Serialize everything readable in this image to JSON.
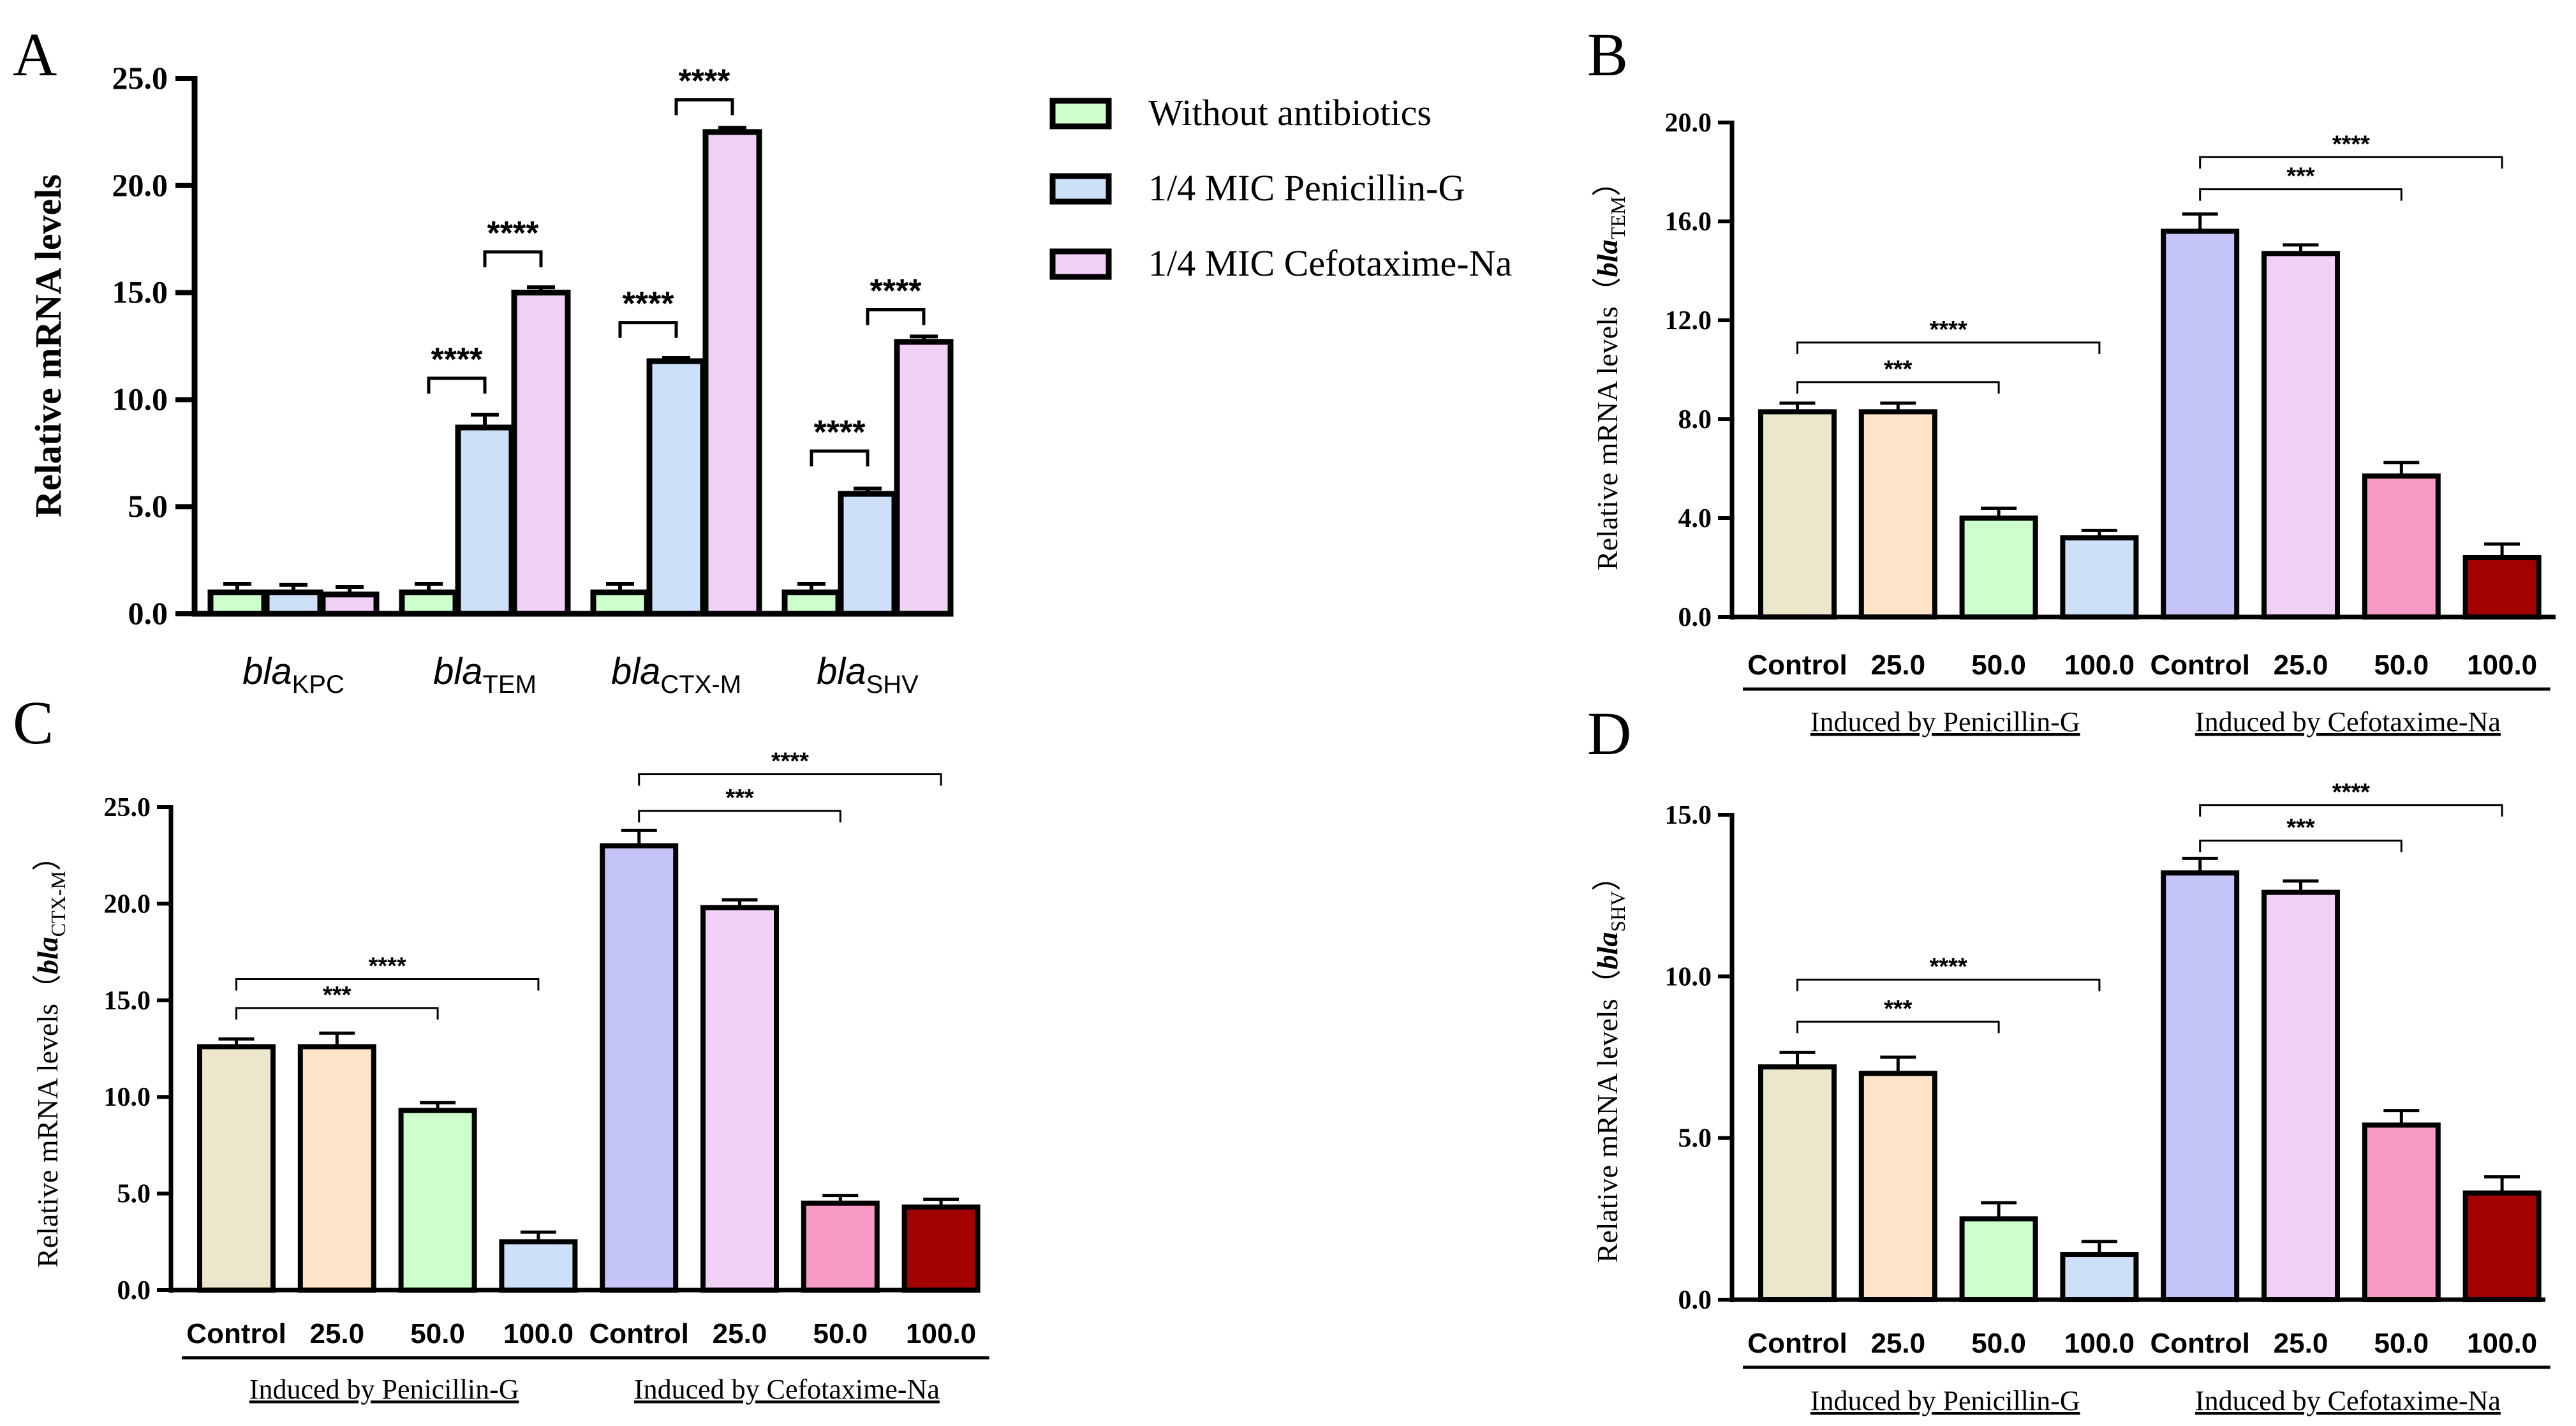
{
  "figure": {
    "panels": [
      {
        "id": "panel-a",
        "label": "A"
      },
      {
        "id": "panel-b",
        "label": "B"
      },
      {
        "id": "panel-c",
        "label": "C"
      },
      {
        "id": "panel-d",
        "label": "D"
      }
    ]
  },
  "colors": {
    "without": "#ccffcc",
    "penicillin": "#cce0f7",
    "cefotaxime": "#f0d0f5",
    "control_pen": "#ebe6cc",
    "c25_pen": "#fde3c8",
    "c50_pen": "#ccffcc",
    "c100_pen": "#cce0f7",
    "control_cef": "#c4c4f8",
    "c25_cef": "#f0d0f5",
    "c50_cef": "#f89bc6",
    "c100_cef": "#a30000"
  },
  "chart_data": [
    {
      "panel": "A",
      "type": "bar",
      "ylabel": "Relative mRNA levels",
      "ylim": [
        0,
        25
      ],
      "yticks": [
        "0.0",
        "5.0",
        "10.0",
        "15.0",
        "20.0",
        "25.0"
      ],
      "categories": [
        {
          "base": "bla",
          "sub": "KPC"
        },
        {
          "base": "bla",
          "sub": "TEM"
        },
        {
          "base": "bla",
          "sub": "CTX-M"
        },
        {
          "base": "bla",
          "sub": "SHV"
        }
      ],
      "series": [
        {
          "name": "Without antibiotics",
          "color": "#ccffcc",
          "values": [
            1.0,
            1.0,
            1.0,
            1.0
          ],
          "errors": [
            0.4,
            0.4,
            0.4,
            0.4
          ]
        },
        {
          "name": "1/4 MIC Penicillin-G",
          "color": "#cce0f7",
          "values": [
            1.0,
            8.7,
            11.8,
            5.6
          ],
          "errors": [
            0.35,
            0.6,
            0.15,
            0.25
          ]
        },
        {
          "name": "1/4 MIC Cefotaxime-Na",
          "color": "#f0d0f5",
          "values": [
            0.9,
            15.0,
            22.5,
            12.7
          ],
          "errors": [
            0.35,
            0.25,
            0.2,
            0.25
          ]
        }
      ],
      "legend": {
        "position": "right",
        "items": [
          "Without antibiotics",
          "1/4 MIC Penicillin-G",
          "1/4 MIC Cefotaxime-Na"
        ]
      },
      "significance": [
        {
          "cat": 1,
          "from": 0,
          "to": 1,
          "label": "****",
          "level": 11.0
        },
        {
          "cat": 1,
          "from": 1,
          "to": 2,
          "label": "****",
          "level": 16.9
        },
        {
          "cat": 2,
          "from": 0,
          "to": 1,
          "label": "****",
          "level": 13.6
        },
        {
          "cat": 2,
          "from": 1,
          "to": 2,
          "label": "****",
          "level": 24.0
        },
        {
          "cat": 3,
          "from": 0,
          "to": 1,
          "label": "****",
          "level": 7.6
        },
        {
          "cat": 3,
          "from": 1,
          "to": 2,
          "label": "****",
          "level": 14.2
        }
      ]
    },
    {
      "panel": "B",
      "type": "bar",
      "ylabel_prefix": "Relative mRNA levels（",
      "ylabel_gene": "bla",
      "ylabel_sub": "TEM",
      "ylabel_suffix": "）",
      "ylim": [
        0,
        20
      ],
      "yticks": [
        "0.0",
        "4.0",
        "8.0",
        "12.0",
        "16.0",
        "20.0"
      ],
      "categories": [
        "Control",
        "25.0",
        "50.0",
        "100.0",
        "Control",
        "25.0",
        "50.0",
        "100.0"
      ],
      "values": [
        8.3,
        8.3,
        4.0,
        3.2,
        15.6,
        14.7,
        5.7,
        2.4
      ],
      "errors": [
        0.35,
        0.35,
        0.4,
        0.3,
        0.7,
        0.35,
        0.55,
        0.55
      ],
      "group_labels": [
        "Induced by Penicillin-G",
        "Induced by Cefotaxime-Na"
      ],
      "significance": [
        {
          "from": 0,
          "to": 2,
          "label": "***",
          "level": 9.5
        },
        {
          "from": 0,
          "to": 3,
          "label": "****",
          "level": 11.1
        },
        {
          "from": 4,
          "to": 6,
          "label": "***",
          "level": 17.3
        },
        {
          "from": 4,
          "to": 7,
          "label": "****",
          "level": 18.6
        }
      ]
    },
    {
      "panel": "C",
      "type": "bar",
      "ylabel_prefix": "Relative mRNA levels（",
      "ylabel_gene": "bla",
      "ylabel_sub": "CTX-M",
      "ylabel_suffix": "）",
      "ylim": [
        0,
        25
      ],
      "yticks": [
        "0.0",
        "5.0",
        "10.0",
        "15.0",
        "20.0",
        "25.0"
      ],
      "categories": [
        "Control",
        "25.0",
        "50.0",
        "100.0",
        "Control",
        "25.0",
        "50.0",
        "100.0"
      ],
      "values": [
        12.6,
        12.6,
        9.3,
        2.5,
        23.0,
        19.8,
        4.5,
        4.3
      ],
      "errors": [
        0.4,
        0.7,
        0.4,
        0.5,
        0.8,
        0.4,
        0.4,
        0.4
      ],
      "group_labels": [
        "Induced by Penicillin-G",
        "Induced by Cefotaxime-Na"
      ],
      "significance": [
        {
          "from": 0,
          "to": 2,
          "label": "***",
          "level": 14.6
        },
        {
          "from": 0,
          "to": 3,
          "label": "****",
          "level": 16.1
        },
        {
          "from": 4,
          "to": 6,
          "label": "***",
          "level": 24.8
        },
        {
          "from": 4,
          "to": 7,
          "label": "****",
          "level": 26.7
        }
      ]
    },
    {
      "panel": "D",
      "type": "bar",
      "ylabel_prefix": "Relative mRNA levels（",
      "ylabel_gene": "bla",
      "ylabel_sub": "SHV",
      "ylabel_suffix": "）",
      "ylim": [
        0,
        15
      ],
      "yticks": [
        "0.0",
        "5.0",
        "10.0",
        "15.0"
      ],
      "categories": [
        "Control",
        "25.0",
        "50.0",
        "100.0",
        "Control",
        "25.0",
        "50.0",
        "100.0"
      ],
      "values": [
        7.2,
        7.0,
        2.5,
        1.4,
        13.2,
        12.6,
        5.4,
        3.3
      ],
      "errors": [
        0.45,
        0.5,
        0.5,
        0.4,
        0.45,
        0.35,
        0.45,
        0.5
      ],
      "group_labels": [
        "Induced by Penicillin-G",
        "Induced by Cefotaxime-Na"
      ],
      "significance": [
        {
          "from": 0,
          "to": 2,
          "label": "***",
          "level": 8.6
        },
        {
          "from": 0,
          "to": 3,
          "label": "****",
          "level": 9.9
        },
        {
          "from": 4,
          "to": 6,
          "label": "***",
          "level": 14.2
        },
        {
          "from": 4,
          "to": 7,
          "label": "****",
          "level": 15.3
        }
      ]
    }
  ]
}
